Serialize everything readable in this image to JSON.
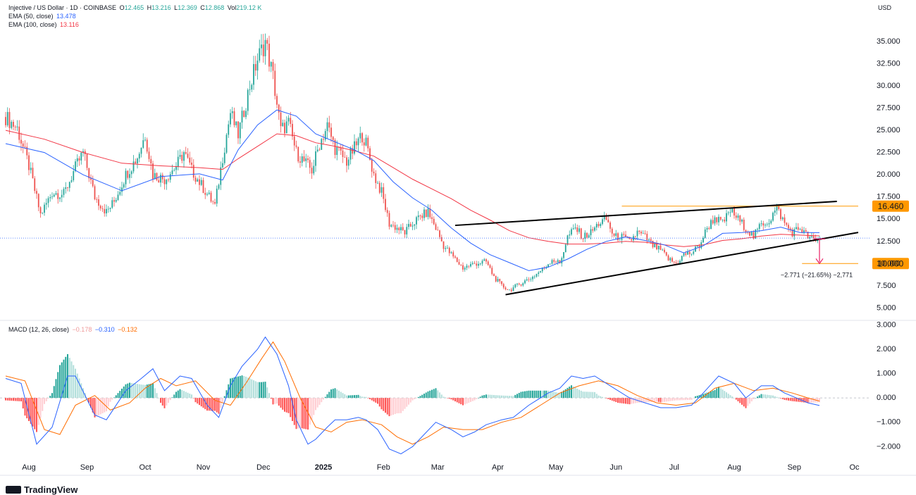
{
  "header": {
    "symbol": "Injective / US Dollar · 1D · COINBASE",
    "ohlc": [
      {
        "label": "O",
        "value": "12.465"
      },
      {
        "label": "H",
        "value": "13.216"
      },
      {
        "label": "L",
        "value": "12.369"
      },
      {
        "label": "C",
        "value": "12.868"
      },
      {
        "label": "Vol",
        "value": "219.12 K"
      }
    ],
    "ema50_label": "EMA (50, close)",
    "ema50_value": "13.478",
    "ema100_label": "EMA (100, close)",
    "ema100_value": "13.116",
    "currency": "USD"
  },
  "macd_legend": {
    "label": "MACD (12, 26, close)",
    "hist_value": "−0.178",
    "macd_value": "−0.310",
    "signal_value": "−0.132"
  },
  "colors": {
    "up": "#26a69a",
    "down": "#ef5350",
    "ema50": "#2962ff",
    "ema100": "#f23645",
    "macd": "#2962ff",
    "signal": "#ff6d00",
    "resistance": "#ff9800",
    "target": "#ff9800",
    "arrow": "#e91e63"
  },
  "chart_data": {
    "type": "candlestick",
    "symbol": "Injective / US Dollar",
    "ylim": [
      4.0,
      36.5
    ],
    "price_ticks": [
      "35.000",
      "32.500",
      "30.000",
      "27.500",
      "25.000",
      "22.500",
      "20.000",
      "17.500",
      "15.000",
      "12.500",
      "10.000",
      "7.500",
      "5.000"
    ],
    "x_tick_labels": [
      "Aug",
      "Sep",
      "Oct",
      "Nov",
      "Dec",
      "2025",
      "Feb",
      "Mar",
      "Apr",
      "May",
      "Jun",
      "Jul",
      "Aug",
      "Sep",
      "Oc"
    ],
    "price_path": [
      [
        0,
        26.5
      ],
      [
        6,
        25.2
      ],
      [
        12,
        21
      ],
      [
        18,
        15.5
      ],
      [
        24,
        18
      ],
      [
        30,
        17.8
      ],
      [
        36,
        20.8
      ],
      [
        40,
        22.5
      ],
      [
        46,
        17.5
      ],
      [
        52,
        15.8
      ],
      [
        56,
        17
      ],
      [
        62,
        20
      ],
      [
        68,
        22
      ],
      [
        72,
        24.5
      ],
      [
        76,
        20
      ],
      [
        82,
        19.5
      ],
      [
        88,
        21
      ],
      [
        92,
        22.5
      ],
      [
        96,
        20.5
      ],
      [
        102,
        18.5
      ],
      [
        108,
        16.5
      ],
      [
        112,
        22
      ],
      [
        116,
        27
      ],
      [
        120,
        24.5
      ],
      [
        126,
        30
      ],
      [
        130,
        33
      ],
      [
        134,
        35
      ],
      [
        138,
        31
      ],
      [
        142,
        25
      ],
      [
        146,
        25.8
      ],
      [
        150,
        22.5
      ],
      [
        154,
        21.5
      ],
      [
        158,
        20.5
      ],
      [
        162,
        23.5
      ],
      [
        166,
        25.5
      ],
      [
        170,
        23
      ],
      [
        176,
        21.5
      ],
      [
        180,
        23
      ],
      [
        184,
        24.5
      ],
      [
        186,
        23.5
      ],
      [
        190,
        20
      ],
      [
        194,
        18
      ],
      [
        198,
        14.5
      ],
      [
        202,
        14
      ],
      [
        206,
        13.5
      ],
      [
        210,
        14.5
      ],
      [
        214,
        15.3
      ],
      [
        218,
        15.8
      ],
      [
        222,
        14
      ],
      [
        226,
        12
      ],
      [
        230,
        11
      ],
      [
        236,
        9.5
      ],
      [
        242,
        10
      ],
      [
        248,
        10.2
      ],
      [
        252,
        8.5
      ],
      [
        256,
        7.5
      ],
      [
        260,
        7
      ],
      [
        266,
        7.8
      ],
      [
        272,
        8.5
      ],
      [
        278,
        9.5
      ],
      [
        282,
        10.5
      ],
      [
        286,
        10
      ],
      [
        290,
        13
      ],
      [
        294,
        14
      ],
      [
        298,
        13
      ],
      [
        302,
        13.5
      ],
      [
        306,
        14.5
      ],
      [
        310,
        15
      ],
      [
        314,
        13
      ],
      [
        318,
        13
      ],
      [
        322,
        12.5
      ],
      [
        326,
        13.5
      ],
      [
        330,
        13
      ],
      [
        334,
        12
      ],
      [
        338,
        11.5
      ],
      [
        342,
        10.5
      ],
      [
        346,
        10
      ],
      [
        350,
        11
      ],
      [
        354,
        11.2
      ],
      [
        358,
        12
      ],
      [
        362,
        14
      ],
      [
        366,
        15.2
      ],
      [
        370,
        14.5
      ],
      [
        374,
        16
      ],
      [
        378,
        15
      ],
      [
        382,
        14
      ],
      [
        386,
        13
      ],
      [
        390,
        14.5
      ],
      [
        394,
        14.8
      ],
      [
        398,
        16.3
      ],
      [
        402,
        14.5
      ],
      [
        406,
        13.5
      ],
      [
        410,
        14
      ],
      [
        414,
        13
      ],
      [
        418,
        12.5
      ],
      [
        420,
        12.9
      ]
    ],
    "ema50_path": [
      [
        0,
        23.5
      ],
      [
        20,
        22.5
      ],
      [
        40,
        20
      ],
      [
        60,
        18.2
      ],
      [
        80,
        19.8
      ],
      [
        100,
        20.1
      ],
      [
        112,
        19.4
      ],
      [
        120,
        22.8
      ],
      [
        130,
        25.6
      ],
      [
        140,
        27.3
      ],
      [
        150,
        26.6
      ],
      [
        160,
        24.6
      ],
      [
        170,
        23.7
      ],
      [
        180,
        22.8
      ],
      [
        190,
        21.6
      ],
      [
        200,
        19.2
      ],
      [
        210,
        17.4
      ],
      [
        220,
        16
      ],
      [
        230,
        14
      ],
      [
        240,
        12.3
      ],
      [
        250,
        11
      ],
      [
        260,
        10.1
      ],
      [
        270,
        9.2
      ],
      [
        280,
        9.6
      ],
      [
        290,
        10.5
      ],
      [
        300,
        11.6
      ],
      [
        310,
        12.5
      ],
      [
        320,
        13
      ],
      [
        330,
        12.6
      ],
      [
        340,
        12.1
      ],
      [
        350,
        11.2
      ],
      [
        360,
        12
      ],
      [
        370,
        13.4
      ],
      [
        380,
        13.5
      ],
      [
        390,
        13.7
      ],
      [
        400,
        14.1
      ],
      [
        410,
        13.5
      ],
      [
        420,
        13.48
      ]
    ],
    "ema100_path": [
      [
        0,
        25
      ],
      [
        20,
        24
      ],
      [
        40,
        22.5
      ],
      [
        60,
        21.3
      ],
      [
        80,
        21
      ],
      [
        100,
        20.8
      ],
      [
        112,
        20.6
      ],
      [
        120,
        21.8
      ],
      [
        130,
        23.2
      ],
      [
        140,
        24.6
      ],
      [
        150,
        24.4
      ],
      [
        160,
        23.6
      ],
      [
        170,
        23.2
      ],
      [
        180,
        22.7
      ],
      [
        190,
        22.1
      ],
      [
        200,
        20.8
      ],
      [
        210,
        19.5
      ],
      [
        220,
        18.4
      ],
      [
        230,
        17.3
      ],
      [
        240,
        16
      ],
      [
        250,
        14.9
      ],
      [
        260,
        13.7
      ],
      [
        270,
        12.9
      ],
      [
        280,
        12.5
      ],
      [
        290,
        12.2
      ],
      [
        300,
        12.2
      ],
      [
        310,
        12.3
      ],
      [
        320,
        12.5
      ],
      [
        330,
        12.4
      ],
      [
        340,
        12.1
      ],
      [
        350,
        11.9
      ],
      [
        360,
        12.1
      ],
      [
        370,
        12.6
      ],
      [
        380,
        12.8
      ],
      [
        390,
        13.1
      ],
      [
        400,
        13.3
      ],
      [
        410,
        13.2
      ],
      [
        420,
        13.116
      ]
    ],
    "annotations": {
      "resistance_label": "16.460",
      "resistance_value": 16.46,
      "target_label": "10.000",
      "target_value": 10.0,
      "measure_text": "−2.771 (−21.65%) −2,771",
      "current_price": 12.868,
      "wedge_upper": [
        [
          232,
          14.3
        ],
        [
          429,
          17.0
        ]
      ],
      "wedge_lower": [
        [
          258,
          6.5
        ],
        [
          440,
          13.5
        ]
      ],
      "resistance_span": [
        318,
        440
      ],
      "measure_arrow": [
        [
          420,
          12.77
        ],
        [
          420,
          10.0
        ]
      ]
    },
    "macd": {
      "ylim": [
        -2.6,
        3.1
      ],
      "ticks": [
        "3.000",
        "2.000",
        "1.000",
        "0.000",
        "−1.000",
        "−2.000"
      ],
      "macd_path": [
        [
          0,
          0.8
        ],
        [
          8,
          0.6
        ],
        [
          16,
          -1.9
        ],
        [
          24,
          -1.2
        ],
        [
          32,
          0.9
        ],
        [
          36,
          0.9
        ],
        [
          46,
          -0.7
        ],
        [
          52,
          -0.9
        ],
        [
          62,
          0.3
        ],
        [
          70,
          0.8
        ],
        [
          76,
          1.2
        ],
        [
          82,
          0.3
        ],
        [
          90,
          0.9
        ],
        [
          96,
          0.8
        ],
        [
          104,
          -0.3
        ],
        [
          110,
          -0.8
        ],
        [
          116,
          0.5
        ],
        [
          122,
          1.3
        ],
        [
          130,
          2.0
        ],
        [
          134,
          2.5
        ],
        [
          140,
          1.8
        ],
        [
          146,
          0.5
        ],
        [
          150,
          -0.9
        ],
        [
          156,
          -1.9
        ],
        [
          160,
          -1.7
        ],
        [
          166,
          -1.2
        ],
        [
          170,
          -0.9
        ],
        [
          176,
          -0.9
        ],
        [
          182,
          -0.8
        ],
        [
          186,
          -0.9
        ],
        [
          192,
          -1.3
        ],
        [
          198,
          -2.1
        ],
        [
          204,
          -2.3
        ],
        [
          210,
          -2.0
        ],
        [
          216,
          -1.5
        ],
        [
          222,
          -1.0
        ],
        [
          230,
          -1.3
        ],
        [
          236,
          -1.6
        ],
        [
          242,
          -1.4
        ],
        [
          248,
          -1.1
        ],
        [
          256,
          -0.9
        ],
        [
          262,
          -0.8
        ],
        [
          270,
          -0.3
        ],
        [
          280,
          0.2
        ],
        [
          286,
          0.4
        ],
        [
          292,
          0.9
        ],
        [
          298,
          0.8
        ],
        [
          304,
          0.9
        ],
        [
          310,
          0.6
        ],
        [
          316,
          0.3
        ],
        [
          322,
          0.0
        ],
        [
          330,
          -0.2
        ],
        [
          338,
          -0.4
        ],
        [
          346,
          -0.4
        ],
        [
          354,
          -0.3
        ],
        [
          360,
          0.2
        ],
        [
          368,
          0.9
        ],
        [
          376,
          0.6
        ],
        [
          382,
          0.0
        ],
        [
          390,
          0.5
        ],
        [
          396,
          0.5
        ],
        [
          402,
          0.2
        ],
        [
          408,
          0.0
        ],
        [
          414,
          -0.2
        ],
        [
          420,
          -0.31
        ]
      ],
      "signal_path": [
        [
          0,
          0.9
        ],
        [
          10,
          0.7
        ],
        [
          20,
          -1.3
        ],
        [
          28,
          -1.5
        ],
        [
          36,
          -0.3
        ],
        [
          46,
          0.1
        ],
        [
          54,
          -0.5
        ],
        [
          64,
          -0.2
        ],
        [
          72,
          0.4
        ],
        [
          80,
          0.8
        ],
        [
          88,
          0.5
        ],
        [
          98,
          0.7
        ],
        [
          108,
          -0.1
        ],
        [
          116,
          -0.3
        ],
        [
          124,
          0.6
        ],
        [
          132,
          1.6
        ],
        [
          138,
          2.3
        ],
        [
          144,
          1.5
        ],
        [
          152,
          0.0
        ],
        [
          160,
          -1.2
        ],
        [
          168,
          -1.4
        ],
        [
          176,
          -1.0
        ],
        [
          184,
          -0.9
        ],
        [
          194,
          -1.1
        ],
        [
          202,
          -1.6
        ],
        [
          210,
          -1.9
        ],
        [
          218,
          -1.6
        ],
        [
          226,
          -1.2
        ],
        [
          236,
          -1.3
        ],
        [
          246,
          -1.3
        ],
        [
          256,
          -1.0
        ],
        [
          266,
          -0.8
        ],
        [
          276,
          -0.3
        ],
        [
          286,
          0.2
        ],
        [
          296,
          0.5
        ],
        [
          306,
          0.7
        ],
        [
          316,
          0.5
        ],
        [
          326,
          0.1
        ],
        [
          336,
          -0.2
        ],
        [
          346,
          -0.3
        ],
        [
          356,
          -0.2
        ],
        [
          366,
          0.4
        ],
        [
          376,
          0.6
        ],
        [
          386,
          0.3
        ],
        [
          396,
          0.4
        ],
        [
          406,
          0.2
        ],
        [
          414,
          0.0
        ],
        [
          420,
          -0.13
        ]
      ]
    }
  }
}
